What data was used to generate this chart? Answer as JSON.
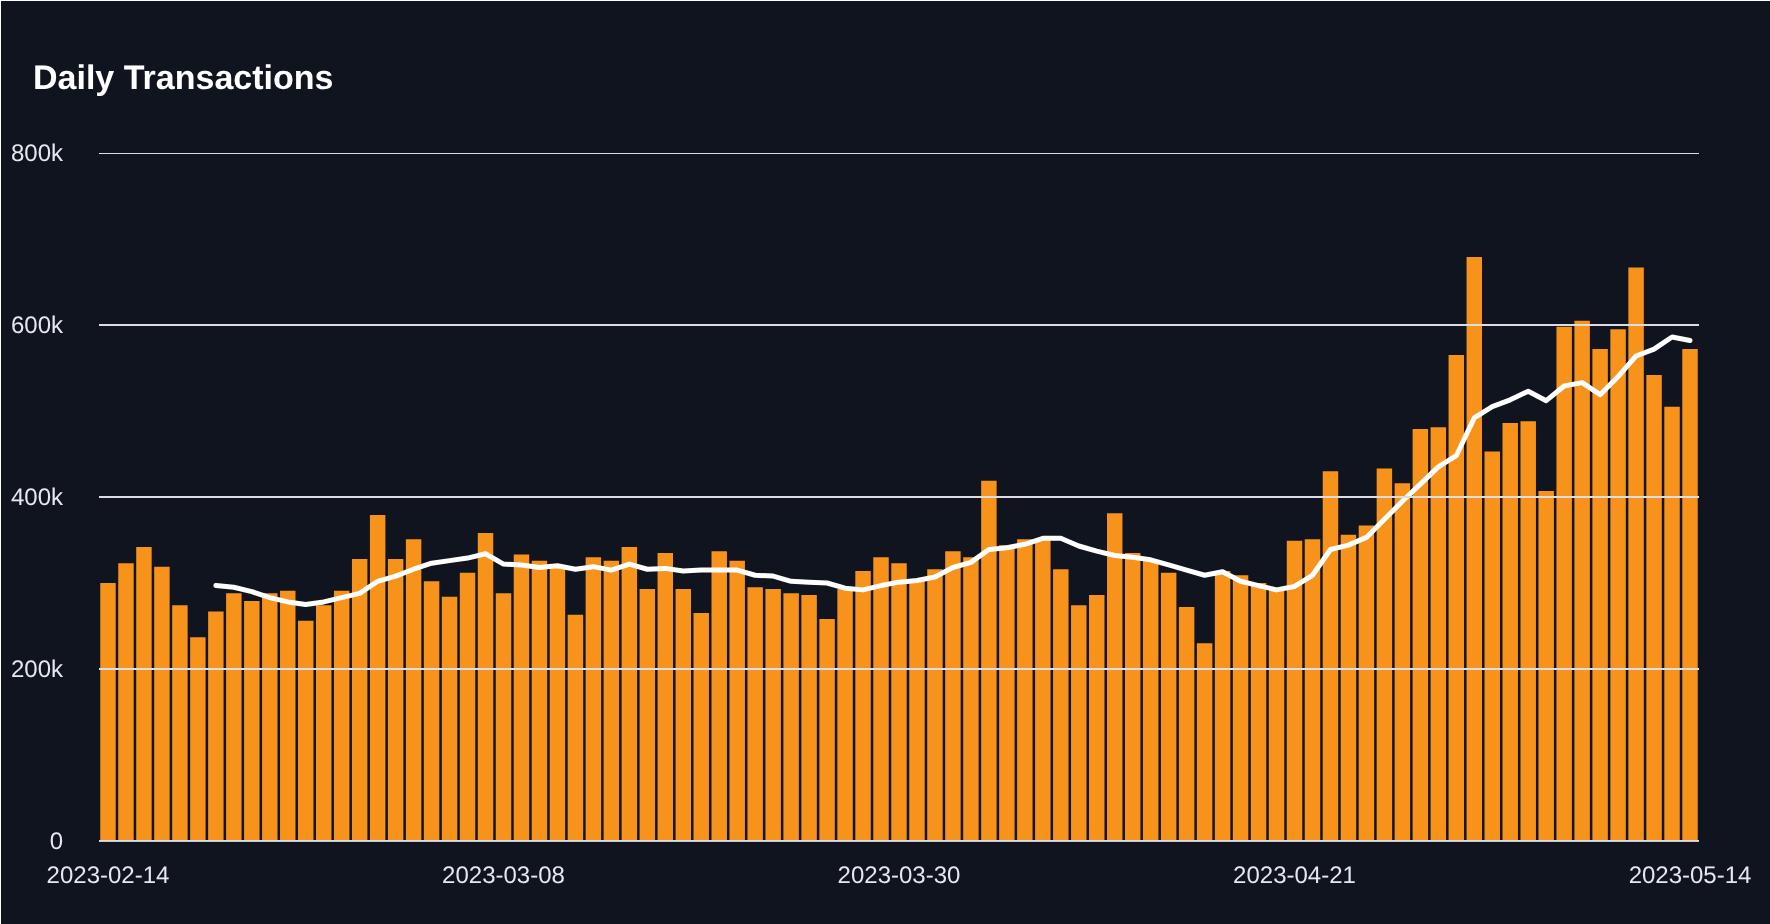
{
  "chart_data": {
    "type": "bar",
    "title": "Daily Transactions",
    "categories": [
      "2023-02-14",
      null,
      null,
      null,
      null,
      null,
      null,
      null,
      null,
      null,
      null,
      null,
      null,
      null,
      null,
      null,
      null,
      null,
      null,
      null,
      null,
      null,
      "2023-03-08",
      null,
      null,
      null,
      null,
      null,
      null,
      null,
      null,
      null,
      null,
      null,
      null,
      null,
      null,
      null,
      null,
      null,
      null,
      null,
      null,
      null,
      "2023-03-30",
      null,
      null,
      null,
      null,
      null,
      null,
      null,
      null,
      null,
      null,
      null,
      null,
      null,
      null,
      null,
      null,
      null,
      null,
      null,
      null,
      null,
      "2023-04-21",
      null,
      null,
      null,
      null,
      null,
      null,
      null,
      null,
      null,
      null,
      null,
      null,
      null,
      null,
      null,
      null,
      null,
      null,
      null,
      null,
      null,
      "2023-05-14"
    ],
    "series": [
      {
        "color": "#f7931a",
        "values": [
          300000,
          323000,
          342000,
          319000,
          274000,
          237000,
          267000,
          288000,
          279000,
          288000,
          291000,
          256000,
          274000,
          291000,
          328000,
          379000,
          328000,
          351000,
          302000,
          284000,
          312000,
          358000,
          288000,
          333000,
          326000,
          319000,
          263000,
          330000,
          326000,
          342000,
          293000,
          335000,
          293000,
          265000,
          337000,
          326000,
          295000,
          293000,
          288000,
          286000,
          258000,
          293000,
          314000,
          330000,
          323000,
          302000,
          316000,
          337000,
          330000,
          419000,
          344000,
          351000,
          351000,
          316000,
          274000,
          286000,
          381000,
          335000,
          326000,
          312000,
          272000,
          230000,
          314000,
          309000,
          300000,
          293000,
          349000,
          351000,
          430000,
          356000,
          367000,
          433000,
          416000,
          479000,
          481000,
          565000,
          679000,
          453000,
          486000,
          488000,
          407000,
          598000,
          605000,
          572000,
          595000,
          667000,
          542000,
          505000,
          572000
        ]
      },
      {
        "type": "line",
        "color": "#ffffff",
        "values": [
          null,
          null,
          null,
          null,
          null,
          null,
          297000,
          295000,
          290000,
          283000,
          278000,
          275000,
          278000,
          283000,
          288000,
          302000,
          308000,
          316000,
          323000,
          326000,
          329000,
          334000,
          322000,
          321000,
          318000,
          320000,
          316000,
          319000,
          315000,
          322000,
          316000,
          317000,
          314000,
          315000,
          315000,
          315000,
          309000,
          308000,
          302000,
          301000,
          300000,
          294000,
          292000,
          297000,
          301000,
          303000,
          307000,
          318000,
          324000,
          339000,
          341000,
          345000,
          352000,
          352000,
          343000,
          337000,
          332000,
          330000,
          327000,
          321000,
          315000,
          309000,
          313000,
          302000,
          297000,
          292000,
          296000,
          309000,
          339000,
          344000,
          353000,
          374000,
          395000,
          415000,
          435000,
          448000,
          492000,
          505000,
          513000,
          523000,
          512000,
          529000,
          533000,
          519000,
          540000,
          564000,
          572000,
          586000,
          582000
        ]
      }
    ],
    "ylim": [
      0,
      800000
    ],
    "yticks": [
      0,
      {
        "value": 200000,
        "label": "200k"
      },
      {
        "value": 400000,
        "label": "400k"
      },
      {
        "value": 600000,
        "label": "600k"
      },
      {
        "value": 800000,
        "label": "800k"
      }
    ],
    "grid": "y"
  }
}
